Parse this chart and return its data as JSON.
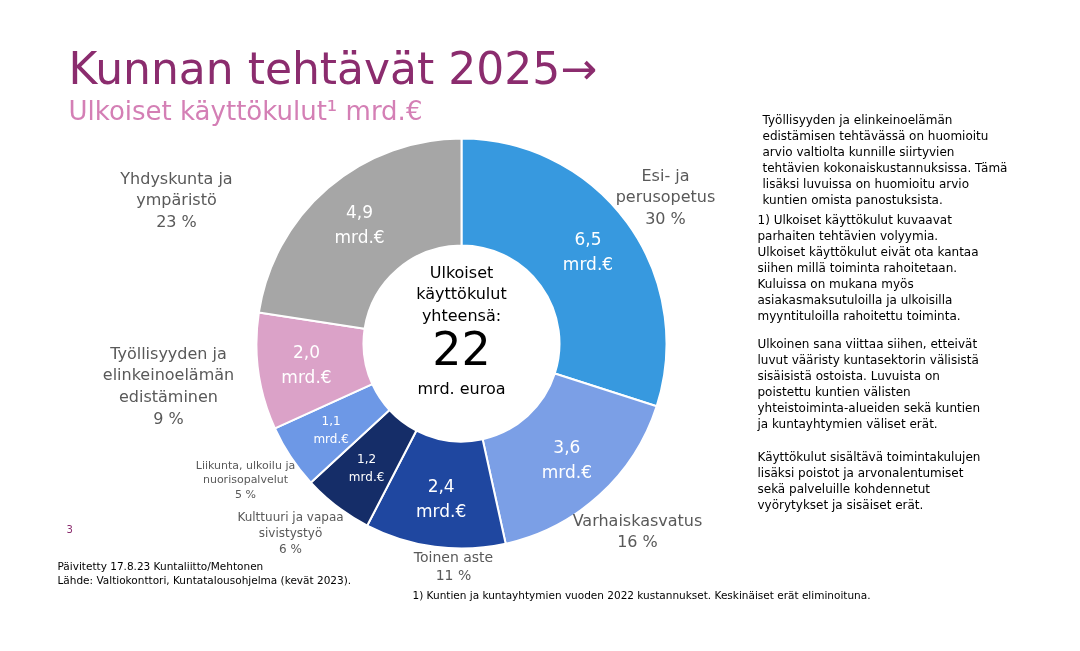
{
  "chart_data": {
    "type": "donut",
    "title": "Kunnan tehtävät 2025→",
    "subtitle": "Ulkoiset käyttökulut¹ mrd.€",
    "categories": [
      "Esi- ja\nperusopetus\n30 %",
      "Varhaiskasvatus\n16 %",
      "Toinen aste\n11 %",
      "Kulttuuri ja vapaa\nsivistystyö\n6 %",
      "Liikunta, ulkoilu ja\nnuorisopalvelut\n5 %",
      "Työllisyyden ja\nelinkeinoelämän\nedistäminen\n9 %",
      "Yhdyskunta ja\nympäristö\n23 %"
    ],
    "values": [
      6.5,
      3.6,
      2.4,
      1.2,
      1.1,
      2.0,
      4.9
    ],
    "value_labels": [
      "6,5\nmrd.€",
      "3,6\nmrd.€",
      "2,4\nmrd.€",
      "1,2\nmrd.€",
      "1,1\nmrd.€",
      "2,0\nmrd.€",
      "4,9\nmrd.€"
    ],
    "colors": [
      "#3799df",
      "#7b9fe6",
      "#1f47a0",
      "#152d68",
      "#6d98e6",
      "#dba2c8",
      "#a6a6a6"
    ],
    "annotations": [
      "Ulkoiset\nkäyttökulut\nyhteensä:",
      "22",
      "mrd. euroa",
      "Työllisyyden ja elinkeinoelämän\nedistämisen tehtävässä on huomioitu\narvio valtiolta kunnille siirtyvien\ntehtävien kokonaiskustannuksissa. Tämä\nlisäksi luvuissa on huomioitu arvio\nkuntien omista panostuksista.",
      "1) Ulkoiset käyttökulut kuvaavat\nparhaiten tehtävien volyymia.\nUlkoiset käyttökulut eivät ota kantaa\nsiihen millä toiminta rahoitetaan.\nKuluissa on mukana myös\nasiakasmaksutuloilla ja ulkoisilla\nmyyntituloilla rahoitettu toiminta.",
      "Ulkoinen sana viittaa siihen, etteivät\nluvut vääristy kuntasektorin välisistä\nsisäisistä ostoista. Luvuista on\npoistettu kuntien välisten\nyhteistoiminta-alueiden sekä kuntien\nja kuntayhtymien väliset erät.",
      "Käyttökulut sisältävä toimintakulujen\nlisäksi poistot ja arvonalentumiset\nsekä palveluille kohdennetut\nvyörytykset ja sisäiset erät.",
      "3",
      "Päivitetty 17.8.23 Kuntaliitto/Mehtonen",
      "Lähde: Valtiokonttori, Kuntatalousohjelma (kevät 2023).",
      "1) Kuntien ja kuntayhtymien vuoden 2022 kustannukset. Keskinäiset erät eliminoituna."
    ]
  }
}
